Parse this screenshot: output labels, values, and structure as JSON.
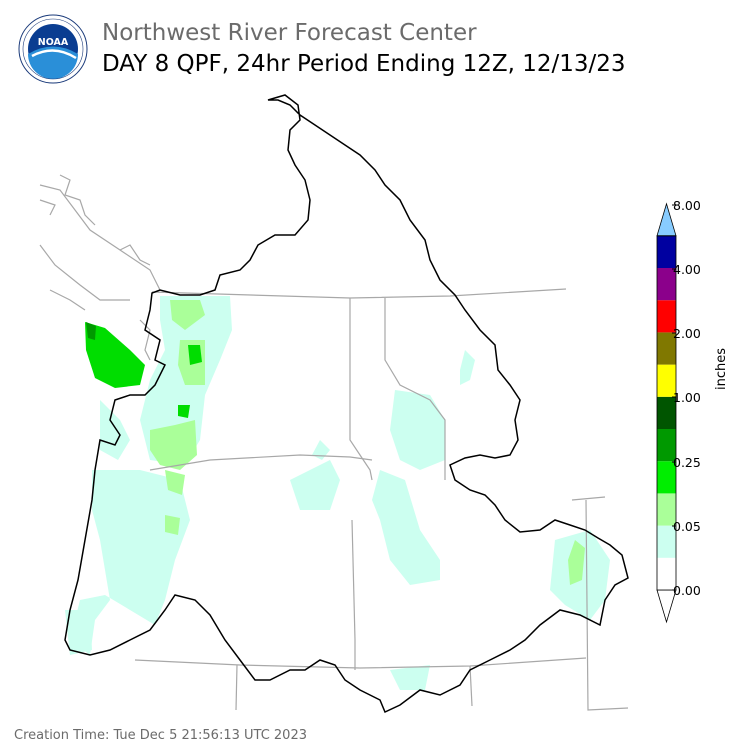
{
  "header": {
    "agency": "Northwest River Forecast Center",
    "product": "DAY 8 QPF, 24hr Period Ending 12Z, 12/13/23",
    "logo_text": "NOAA",
    "logo_ring_text": "NATIONAL OCEANIC AND ATMOSPHERIC ADMINISTRATION · U.S. DEPARTMENT OF COMMERCE"
  },
  "footer": {
    "creation": "Creation Time: Tue Dec 5 21:56:13 UTC 2023"
  },
  "legend": {
    "unit": "inches",
    "tick_labels": [
      "0.00",
      "0.05",
      "0.25",
      "1.00",
      "2.00",
      "4.00",
      "8.00"
    ],
    "colors": [
      "#ffffff",
      "#ccfff0",
      "#aaff99",
      "#00ee00",
      "#009900",
      "#005500",
      "#ffff00",
      "#807800",
      "#ff0000",
      "#8b008b",
      "#0000a0",
      "#0044ff",
      "#88ccff"
    ]
  },
  "map_colors": {
    "basin_outline": "#000000",
    "state_lines": "#a8a8a8",
    "qpf_trace": "#ccfff0",
    "qpf_light": "#aaff99",
    "qpf_moderate": "#00dd00",
    "qpf_heavy": "#009900"
  }
}
